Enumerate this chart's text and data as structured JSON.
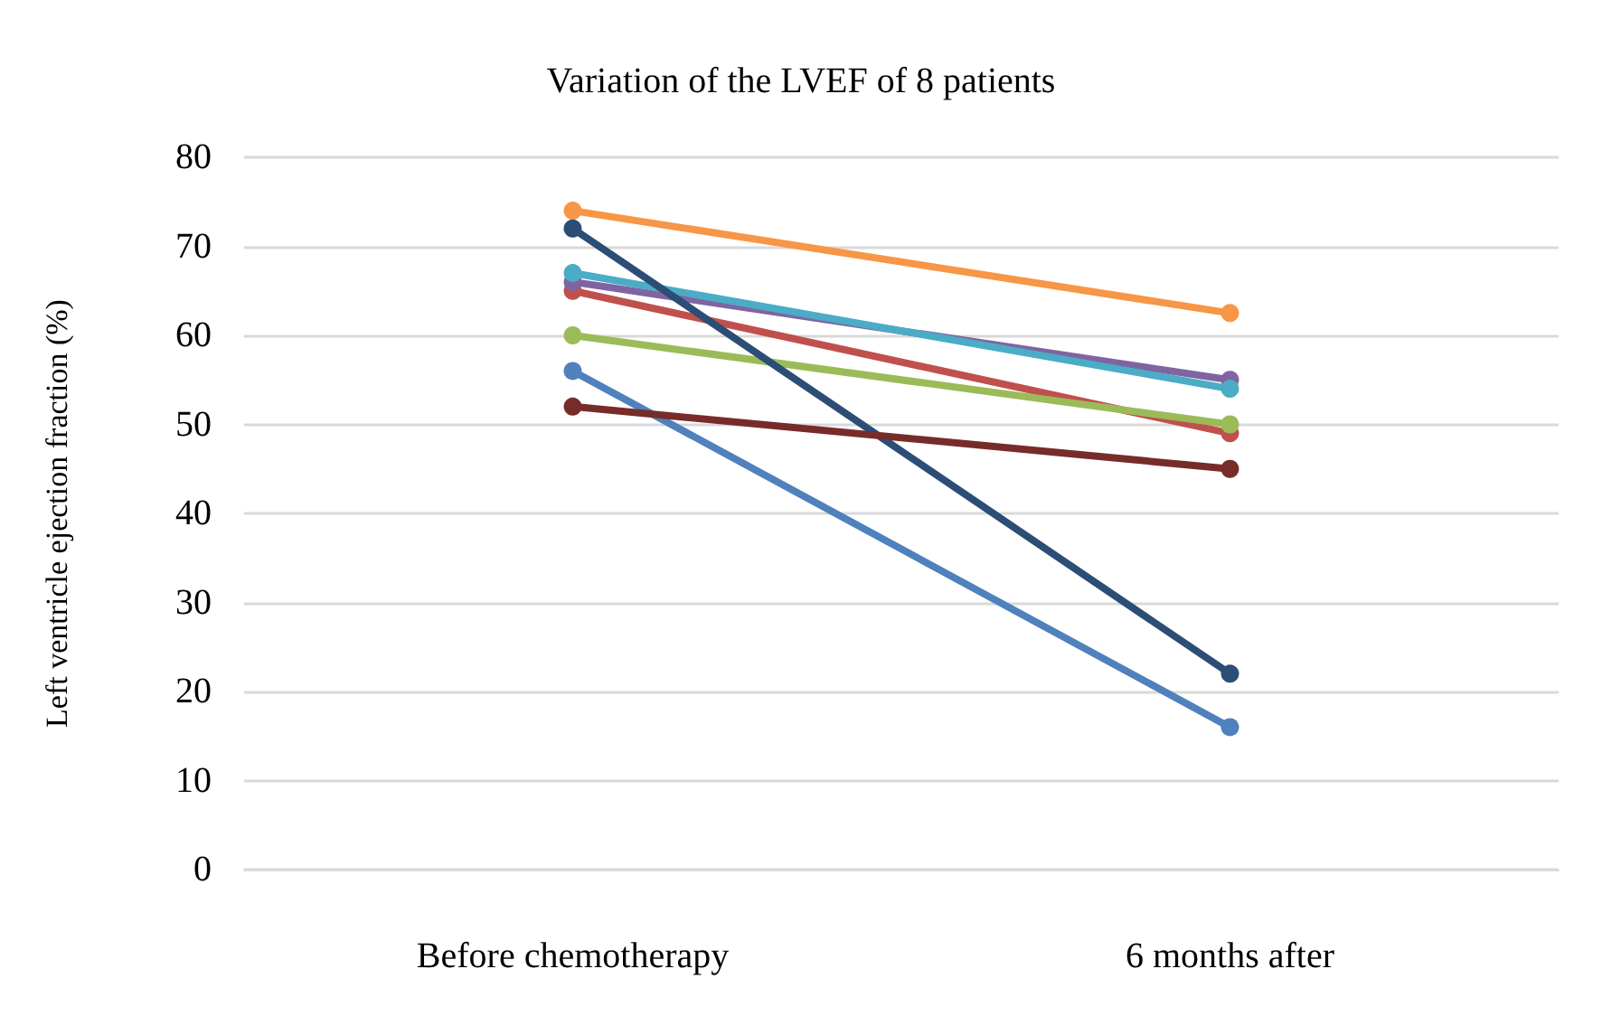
{
  "chart_data": {
    "type": "line",
    "title": "Variation of the LVEF of 8 patients",
    "ylabel": "Left ventricle ejection fraction (%)",
    "categories": [
      "Before chemotherapy",
      "6 months after"
    ],
    "series": [
      {
        "color": "#4f81bd",
        "values": [
          56,
          16
        ]
      },
      {
        "color": "#c0504d",
        "values": [
          65,
          49
        ]
      },
      {
        "color": "#9bbb59",
        "values": [
          60,
          50
        ]
      },
      {
        "color": "#8064a2",
        "values": [
          66,
          55
        ]
      },
      {
        "color": "#4bacc6",
        "values": [
          67,
          54
        ]
      },
      {
        "color": "#f79646",
        "values": [
          74,
          62.5
        ]
      },
      {
        "color": "#2c4d75",
        "values": [
          72,
          22
        ]
      },
      {
        "color": "#772c2a",
        "values": [
          52,
          45
        ]
      }
    ],
    "ylim": [
      0,
      80
    ],
    "yticks": [
      0,
      10,
      20,
      30,
      40,
      50,
      60,
      70,
      80
    ],
    "grid": "y",
    "marker": "circle",
    "line_style": "solid"
  }
}
